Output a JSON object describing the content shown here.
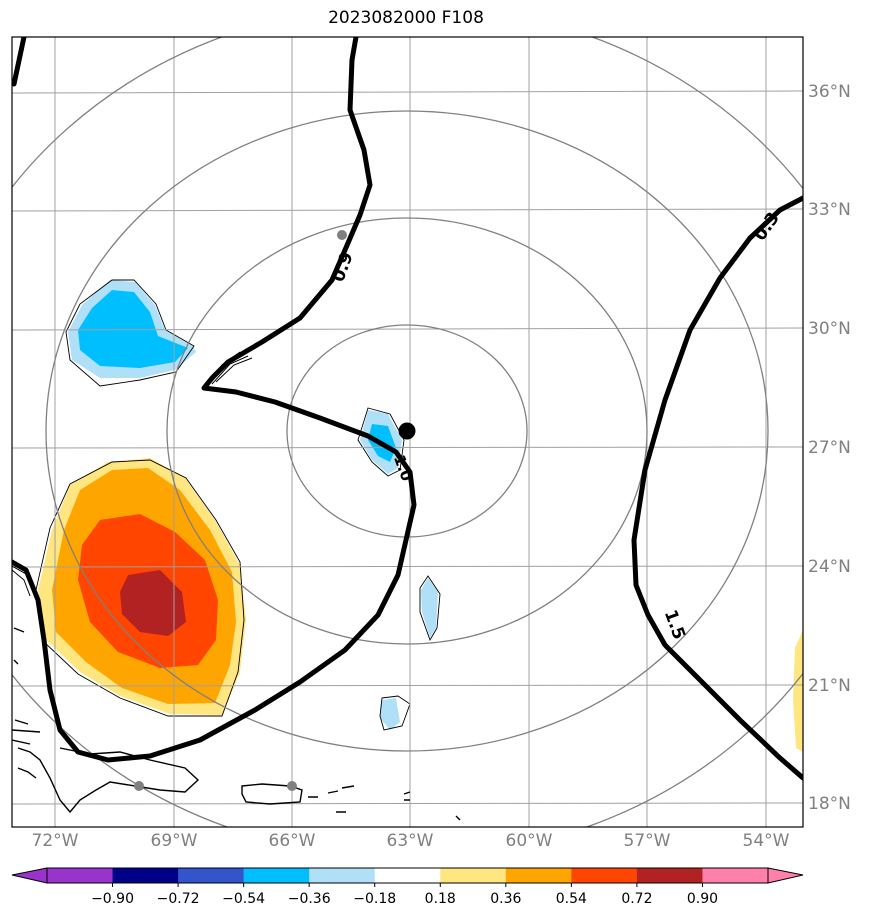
{
  "title": "2023082000 F108",
  "latitude_labels": [
    "36°N",
    "33°N",
    "30°N",
    "27°N",
    "24°N",
    "21°N",
    "18°N"
  ],
  "longitude_labels": [
    "72°W",
    "69°W",
    "66°W",
    "63°W",
    "60°W",
    "57°W",
    "54°W"
  ],
  "contour_labels": [
    "0.9",
    "1.5",
    "0.3",
    "1.0"
  ],
  "colorbar": {
    "ticks": [
      "−0.90",
      "−0.72",
      "−0.54",
      "−0.36",
      "−0.18",
      "0.18",
      "0.36",
      "0.54",
      "0.72",
      "0.90"
    ],
    "colors": [
      "#9933cc",
      "#000088",
      "#3355cc",
      "#00bfff",
      "#b0e0f8",
      "#ffffff",
      "#ffe680",
      "#ffa500",
      "#ff4500",
      "#b22222",
      "#ff80aa"
    ]
  },
  "colors": {
    "grid": "#a0a0a0",
    "range_rings": "#808080",
    "contour": "#000000",
    "axis_labels": "#808080"
  }
}
